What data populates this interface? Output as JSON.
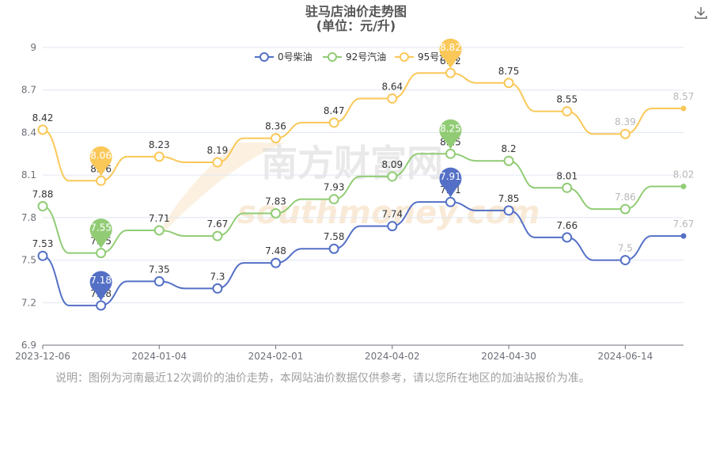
{
  "chart_data": {
    "type": "line",
    "title": "驻马店油价走势图",
    "subtitle": "(单位：元/升)",
    "xlabel": "",
    "ylabel": "",
    "x_ticks": [
      "2023-12-06",
      "2024-01-04",
      "2024-02-01",
      "2024-04-02",
      "2024-04-30",
      "2024-06-14"
    ],
    "x_tick_positions": [
      0,
      2,
      4,
      6,
      8,
      10
    ],
    "y_ticks": [
      "6.9",
      "7.2",
      "7.5",
      "7.8",
      "8.1",
      "8.4",
      "8.7",
      "9"
    ],
    "ylim": [
      6.9,
      9
    ],
    "grid": true,
    "legend_position": "top-center",
    "series": [
      {
        "name": "0号柴油",
        "color": "#5470c6",
        "values": [
          7.53,
          7.18,
          7.35,
          7.3,
          7.48,
          7.58,
          7.74,
          7.91,
          7.85,
          7.66,
          7.5,
          7.67
        ],
        "labels": [
          "7.53",
          "7.18",
          "7.35",
          "7.3",
          "7.48",
          "7.58",
          "7.74",
          "7.91",
          "7.85",
          "7.66",
          "7.5",
          "7.67"
        ],
        "pin_min_index": 1,
        "pin_max_index": 7
      },
      {
        "name": "92号汽油",
        "color": "#91cc75",
        "values": [
          7.88,
          7.55,
          7.71,
          7.67,
          7.83,
          7.93,
          8.09,
          8.25,
          8.2,
          8.01,
          7.86,
          8.02
        ],
        "labels": [
          "7.88",
          "7.55",
          "7.71",
          "7.67",
          "7.83",
          "7.93",
          "8.09",
          "8.25",
          "8.2",
          "8.01",
          "7.86",
          "8.02"
        ],
        "pin_min_index": 1,
        "pin_max_index": 7
      },
      {
        "name": "95号汽油",
        "color": "#fac858",
        "values": [
          8.42,
          8.06,
          8.23,
          8.19,
          8.36,
          8.47,
          8.64,
          8.82,
          8.75,
          8.55,
          8.39,
          8.57
        ],
        "labels": [
          "8.42",
          "8.06",
          "8.23",
          "8.19",
          "8.36",
          "8.47",
          "8.64",
          "8.82",
          "8.75",
          "8.55",
          "8.39",
          "8.57"
        ],
        "pin_min_index": 1,
        "pin_max_index": 7
      }
    ],
    "faded_from_index": 10
  },
  "watermark": {
    "cn": "南方财富网",
    "en": "southmoney.com"
  },
  "toolbar": {
    "download_icon": "download-icon"
  },
  "note": "说明：图例为河南最近12次调价的油价走势，本网站油价数据仅供参考，请以您所在地区的加油站报价为准。"
}
